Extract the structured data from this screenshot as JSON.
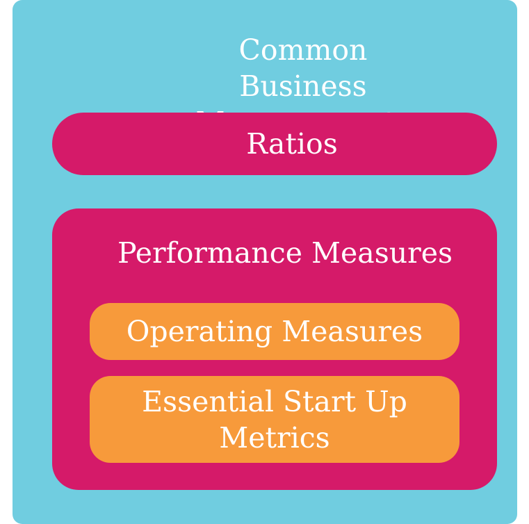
{
  "diagram": {
    "title": "Common Business Measurements",
    "ratios_label": "Ratios",
    "performance": {
      "title": "Performance Measures",
      "operating_label": "Operating Measures",
      "startup_label": "Essential Start Up Metrics"
    }
  },
  "colors": {
    "outer_background": "#70cde0",
    "magenta_box": "#d51a69",
    "orange_box": "#f79a3b",
    "text": "#ffffff"
  }
}
